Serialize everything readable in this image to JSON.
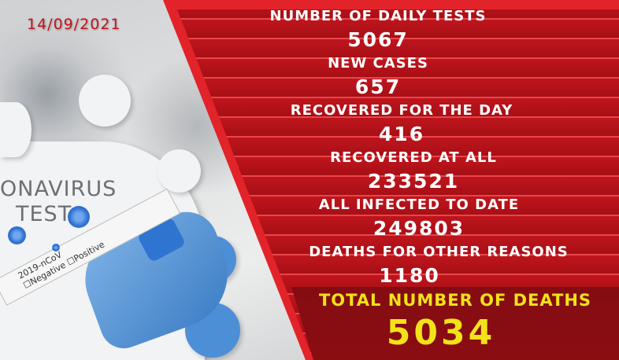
{
  "date": "14/09/2021",
  "photo": {
    "headline": [
      "ONAVIRUS",
      "TEST"
    ],
    "tube_label": "2019-nCoV",
    "tube_options": [
      "Negative",
      "Positive"
    ]
  },
  "stats": [
    {
      "label": "NUMBER OF DAILY TESTS",
      "value": "5067"
    },
    {
      "label": "NEW CASES",
      "value": "657"
    },
    {
      "label": "RECOVERED FOR THE DAY",
      "value": "416"
    },
    {
      "label": "RECOVERED AT ALL",
      "value": "233521"
    },
    {
      "label": "ALL INFECTED TO DATE",
      "value": "249803"
    },
    {
      "label": "DEATHS FOR OTHER REASONS",
      "value": "1180"
    }
  ],
  "total": {
    "label": "TOTAL NUMBER OF DEATHS",
    "value": "5034"
  },
  "colors": {
    "panel_red": "#c0151d",
    "highlight_yellow": "#f2e21a",
    "date_red": "#c4141c"
  }
}
